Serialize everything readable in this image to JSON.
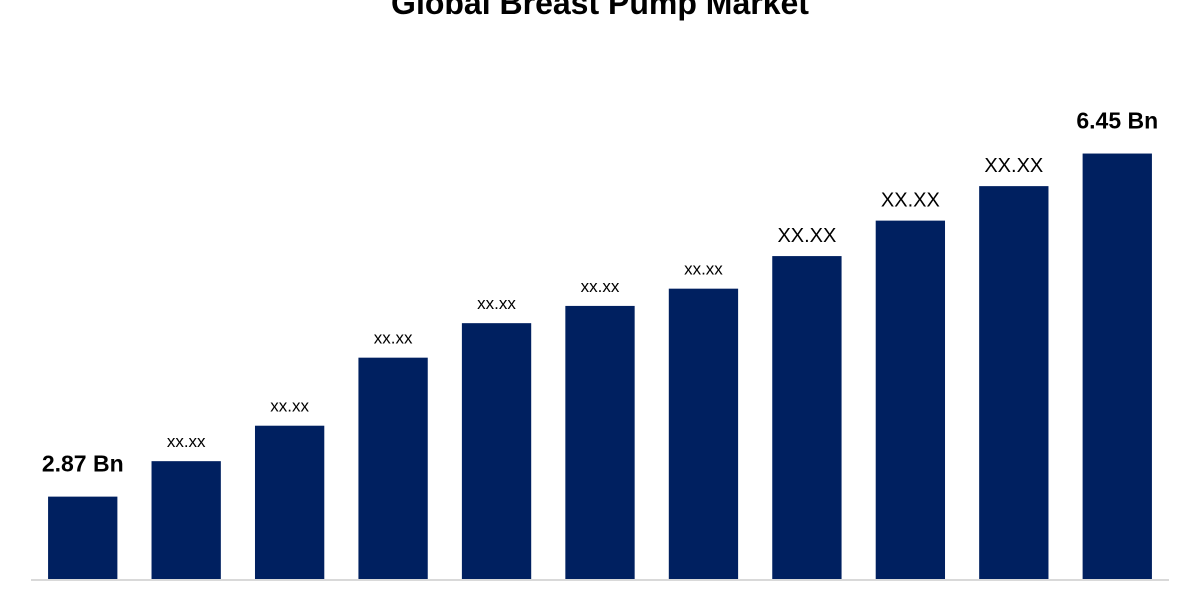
{
  "chart_data": {
    "type": "bar",
    "title": "Global Breast Pump Market",
    "values": [
      2.87,
      3.24,
      3.61,
      4.32,
      4.68,
      4.86,
      5.04,
      5.38,
      5.75,
      6.11,
      6.45
    ],
    "value_labels": [
      "2.87 Bn",
      "xx.xx",
      "xx.xx",
      "xx.xx",
      "xx.xx",
      "xx.xx",
      "xx.xx",
      "XX.XX",
      "XX.XX",
      "XX.XX",
      "6.45 Bn"
    ],
    "color": "#002060",
    "ylim": [
      2,
      8
    ]
  }
}
